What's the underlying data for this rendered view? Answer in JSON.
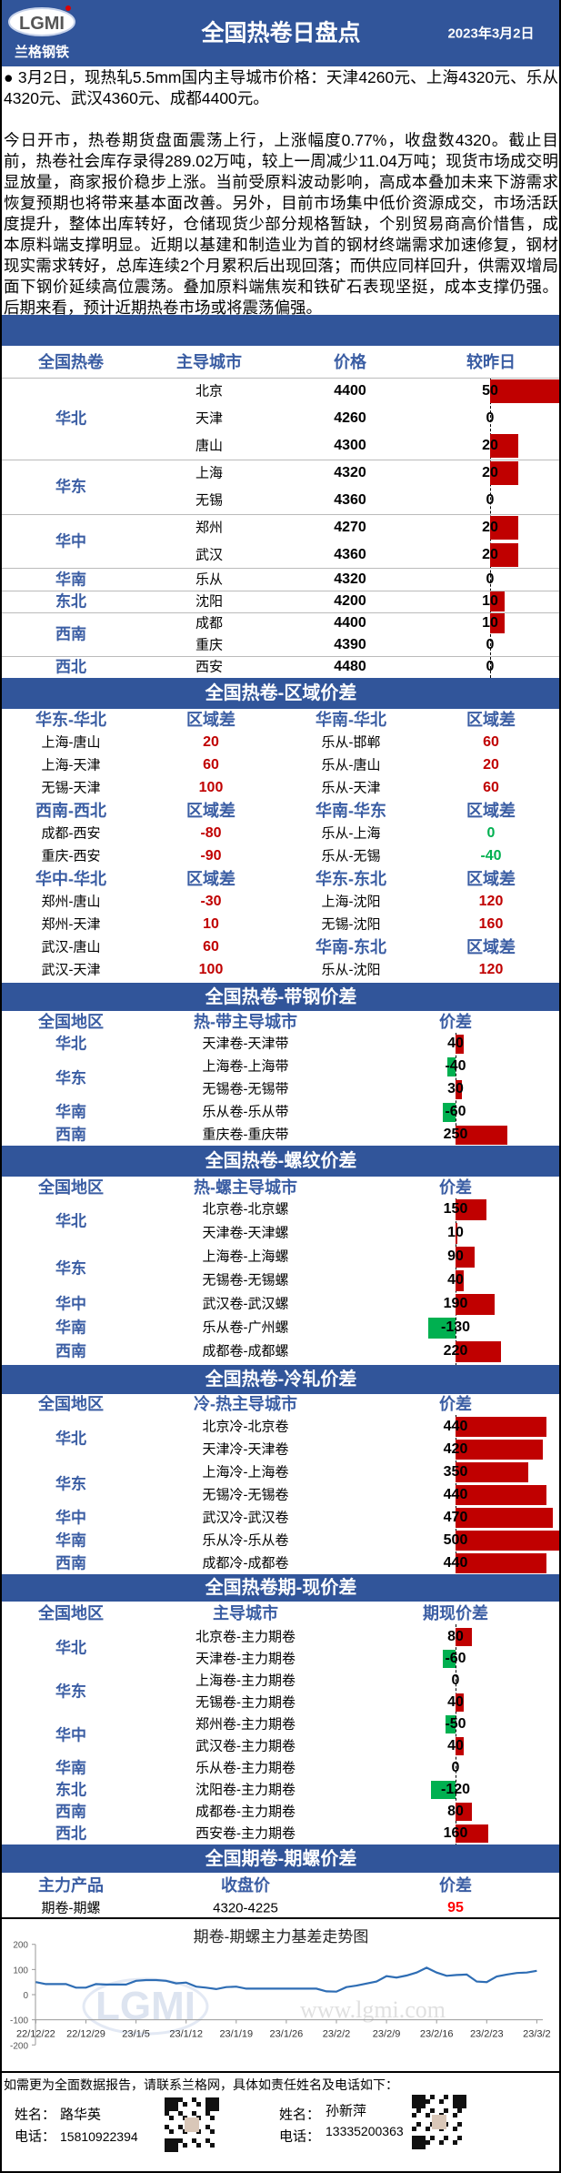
{
  "colors": {
    "brand_blue": "#31559a",
    "header_text": "#3a5da3",
    "positive": "#c00000",
    "negative": "#00b050",
    "highlight": "#ff0000",
    "line": "#2e6db4"
  },
  "header": {
    "logo_text": "LGMI",
    "logo_cn": "兰格钢铁",
    "title": "全国热卷日盘点",
    "date": "2023年3月2日"
  },
  "intro": {
    "bullet": "3月2日，现热轧5.5mm国内主导城市价格：天津4260元、上海4320元、乐从4320元、武汉4360元、成都4400元。",
    "paragraph": "今日开市，热卷期货盘面震荡上行，上涨幅度0.77%，收盘数4320。截止目前，热卷社会库存录得289.02万吨，较上一周减少11.04万吨；现货市场成交明显放量，商家报价稳步上涨。当前受原料波动影响，高成本叠加未来下游需求恢复预期也将带来基本面改善。另外，目前市场集中低价资源成交，市场活跃度提升，整体出库转好，仓储现货少部分规格暂缺，个别贸易商高价惜售，成本原料端支撑明显。近期以基建和制造业为首的钢材终端需求加速修复，钢材现实需求转好，总库连续2个月累积后出现回落；而供应同样回升，供需双增局面下钢价延续高位震荡。叠加原料端焦炭和铁矿石表现坚挺，成本支撑仍强。后期来看，预计近期热卷市场或将震荡偏强。"
  },
  "price_table": {
    "headers": [
      "全国热卷",
      "主导城市",
      "价格",
      "较昨日"
    ],
    "groups": [
      {
        "region": "华北",
        "rows": [
          {
            "city": "北京",
            "price": "4400",
            "change": 50
          },
          {
            "city": "天津",
            "price": "4260",
            "change": 0
          },
          {
            "city": "唐山",
            "price": "4300",
            "change": 20
          }
        ]
      },
      {
        "region": "华东",
        "rows": [
          {
            "city": "上海",
            "price": "4320",
            "change": 20
          },
          {
            "city": "无锡",
            "price": "4360",
            "change": 0
          }
        ]
      },
      {
        "region": "华中",
        "rows": [
          {
            "city": "郑州",
            "price": "4270",
            "change": 20
          },
          {
            "city": "武汉",
            "price": "4360",
            "change": 20
          }
        ]
      },
      {
        "region": "华南",
        "rows": [
          {
            "city": "乐从",
            "price": "4320",
            "change": 0
          }
        ]
      },
      {
        "region": "东北",
        "rows": [
          {
            "city": "沈阳",
            "price": "4200",
            "change": 10
          }
        ]
      },
      {
        "region": "西南",
        "rows": [
          {
            "city": "成都",
            "price": "4400",
            "change": 10
          },
          {
            "city": "重庆",
            "price": "4390",
            "change": 0
          }
        ]
      },
      {
        "region": "西北",
        "rows": [
          {
            "city": "西安",
            "price": "4480",
            "change": 0
          }
        ]
      }
    ]
  },
  "region_diff": {
    "title": "全国热卷-区域价差",
    "left": [
      {
        "header": [
          "华东-华北",
          "区域差"
        ],
        "color": "red",
        "rows": [
          [
            "上海-唐山",
            "20"
          ],
          [
            "上海-天津",
            "60"
          ],
          [
            "无锡-天津",
            "100"
          ]
        ]
      },
      {
        "header": [
          "西南-西北",
          "区域差"
        ],
        "color": "red",
        "rows": [
          [
            "成都-西安",
            "-80"
          ],
          [
            "重庆-西安",
            "-90"
          ]
        ]
      },
      {
        "header": [
          "华中-华北",
          "区域差"
        ],
        "color": "red",
        "rows": [
          [
            "郑州-唐山",
            "-30"
          ],
          [
            "郑州-天津",
            "10"
          ],
          [
            "武汉-唐山",
            "60"
          ],
          [
            "武汉-天津",
            "100"
          ]
        ]
      }
    ],
    "right": [
      {
        "header": [
          "华南-华北",
          "区域差"
        ],
        "color": "red",
        "rows": [
          [
            "乐从-邯郸",
            "60"
          ],
          [
            "乐从-唐山",
            "20"
          ],
          [
            "乐从-天津",
            "60"
          ]
        ]
      },
      {
        "header": [
          "华南-华东",
          "区域差"
        ],
        "color": "green",
        "rows": [
          [
            "乐从-上海",
            "0"
          ],
          [
            "乐从-无锡",
            "-40"
          ]
        ]
      },
      {
        "header": [
          "华东-东北",
          "区域差"
        ],
        "color": "red",
        "rows": [
          [
            "上海-沈阳",
            "120"
          ],
          [
            "无锡-沈阳",
            "160"
          ]
        ]
      },
      {
        "header": [
          "华南-东北",
          "区域差"
        ],
        "color": "red",
        "rows": [
          [
            "乐从-沈阳",
            "120"
          ]
        ]
      }
    ]
  },
  "strip": {
    "title": "全国热卷-带钢价差",
    "headers": [
      "全国地区",
      "热-带主导城市",
      "价差"
    ],
    "groups": [
      {
        "region": "华北",
        "rows": [
          [
            "天津卷-天津带",
            40
          ]
        ]
      },
      {
        "region": "华东",
        "rows": [
          [
            "上海卷-上海带",
            -40
          ],
          [
            "无锡卷-无锡带",
            30
          ]
        ]
      },
      {
        "region": "华南",
        "rows": [
          [
            "乐从卷-乐从带",
            -60
          ]
        ]
      },
      {
        "region": "西南",
        "rows": [
          [
            "重庆卷-重庆带",
            250
          ]
        ]
      }
    ]
  },
  "rebar": {
    "title": "全国热卷-螺纹价差",
    "headers": [
      "全国地区",
      "热-螺主导城市",
      "价差"
    ],
    "groups": [
      {
        "region": "华北",
        "rows": [
          [
            "北京卷-北京螺",
            150
          ],
          [
            "天津卷-天津螺",
            10
          ]
        ]
      },
      {
        "region": "华东",
        "rows": [
          [
            "上海卷-上海螺",
            90
          ],
          [
            "无锡卷-无锡螺",
            40
          ]
        ]
      },
      {
        "region": "华中",
        "rows": [
          [
            "武汉卷-武汉螺",
            190
          ]
        ]
      },
      {
        "region": "华南",
        "rows": [
          [
            "乐从卷-广州螺",
            -130
          ]
        ]
      },
      {
        "region": "西南",
        "rows": [
          [
            "成都卷-成都螺",
            220
          ]
        ]
      }
    ]
  },
  "cold": {
    "title": "全国热卷-冷轧价差",
    "headers": [
      "全国地区",
      "冷-热主导城市",
      "价差"
    ],
    "groups": [
      {
        "region": "华北",
        "rows": [
          [
            "北京冷-北京卷",
            440
          ],
          [
            "天津冷-天津卷",
            420
          ]
        ]
      },
      {
        "region": "华东",
        "rows": [
          [
            "上海冷-上海卷",
            350
          ],
          [
            "无锡冷-无锡卷",
            440
          ]
        ]
      },
      {
        "region": "华中",
        "rows": [
          [
            "武汉冷-武汉卷",
            470
          ]
        ]
      },
      {
        "region": "华南",
        "rows": [
          [
            "乐从冷-乐从卷",
            500
          ]
        ]
      },
      {
        "region": "西南",
        "rows": [
          [
            "成都冷-成都卷",
            440
          ]
        ]
      }
    ]
  },
  "futures_spot": {
    "title": "全国热卷期-现价差",
    "headers": [
      "全国地区",
      "主导城市",
      "期现价差"
    ],
    "groups": [
      {
        "region": "华北",
        "rows": [
          [
            "北京卷-主力期卷",
            80
          ],
          [
            "天津卷-主力期卷",
            -60
          ]
        ]
      },
      {
        "region": "华东",
        "rows": [
          [
            "上海卷-主力期卷",
            0
          ],
          [
            "无锡卷-主力期卷",
            40
          ]
        ]
      },
      {
        "region": "华中",
        "rows": [
          [
            "郑州卷-主力期卷",
            -50
          ],
          [
            "武汉卷-主力期卷",
            40
          ]
        ]
      },
      {
        "region": "华南",
        "rows": [
          [
            "乐从卷-主力期卷",
            0
          ]
        ]
      },
      {
        "region": "东北",
        "rows": [
          [
            "沈阳卷-主力期卷",
            -120
          ]
        ]
      },
      {
        "region": "西南",
        "rows": [
          [
            "成都卷-主力期卷",
            80
          ]
        ]
      },
      {
        "region": "西北",
        "rows": [
          [
            "西安卷-主力期卷",
            160
          ]
        ]
      }
    ]
  },
  "futures_rebar": {
    "title": "全国期卷-期螺价差",
    "headers": [
      "主力产品",
      "收盘价",
      "价差"
    ],
    "row": {
      "product": "期卷-期螺",
      "close": "4320-4225",
      "diff": "95"
    }
  },
  "chart_data": {
    "type": "line",
    "title": "期卷-期螺主力基差走势图",
    "watermark": [
      "LGMI",
      "www.lgmi.com"
    ],
    "ylim": [
      -200,
      200
    ],
    "yticks": [
      "200",
      "100",
      "0",
      "-100",
      "-200"
    ],
    "xtick_labels": [
      "22/12/22",
      "22/12/29",
      "23/1/5",
      "23/1/12",
      "23/1/19",
      "23/1/26",
      "23/2/2",
      "23/2/9",
      "23/2/16",
      "23/2/23",
      "23/3/2"
    ],
    "grid": false,
    "series": [
      {
        "values": [
          50,
          42,
          42,
          42,
          28,
          28,
          42,
          40,
          40,
          40,
          55,
          58,
          58,
          55,
          45,
          48,
          32,
          28,
          22,
          30,
          32,
          24,
          24,
          24,
          24,
          24,
          24,
          24,
          24,
          13,
          12,
          30,
          36,
          44,
          52,
          74,
          68,
          76,
          88,
          107,
          88,
          75,
          78,
          80,
          52,
          50,
          72,
          80,
          86,
          88,
          95
        ]
      }
    ]
  },
  "footer": {
    "note": "如需更为全面数据报告，请联系兰格网，具体如责任姓名及电话如下：",
    "contacts": [
      {
        "name_label": "姓名：",
        "name": "路华英",
        "phone_label": "电话：",
        "phone": "15810922394"
      },
      {
        "name_label": "姓名：",
        "name": "孙新萍",
        "phone_label": "电话：",
        "phone": "13335200363"
      }
    ]
  }
}
